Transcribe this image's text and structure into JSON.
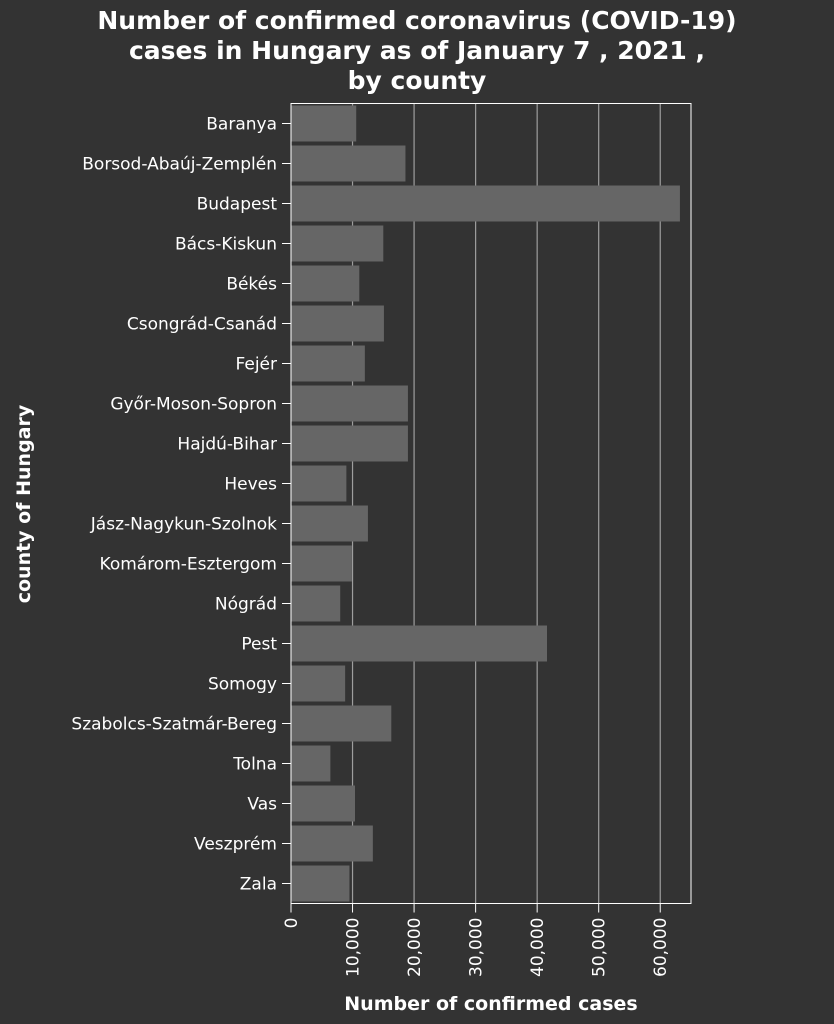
{
  "chart_data": {
    "type": "bar",
    "orientation": "horizontal",
    "title_lines": [
      "Number of confirmed coronavirus (COVID-19)",
      "cases in Hungary as of January 7 , 2021 ,",
      "by county"
    ],
    "xlabel": "Number of confirmed cases",
    "ylabel": "county of Hungary",
    "xlim": [
      0,
      65000
    ],
    "x_ticks": [
      0,
      10000,
      20000,
      30000,
      40000,
      50000,
      60000
    ],
    "x_tick_labels": [
      "0",
      "10,000",
      "20,000",
      "30,000",
      "40,000",
      "50,000",
      "60,000"
    ],
    "grid": "vertical",
    "categories": [
      "Baranya",
      "Borsod-Abaúj-Zemplén",
      "Budapest",
      "Bács-Kiskun",
      "Békés",
      "Csongrád-Csanád",
      "Fejér",
      "Győr-Moson-Sopron",
      "Hajdú-Bihar",
      "Heves",
      "Jász-Nagykun-Szolnok",
      "Komárom-Esztergom",
      "Nógrád",
      "Pest",
      "Somogy",
      "Szabolcs-Szatmár-Bereg",
      "Tolna",
      "Vas",
      "Veszprém",
      "Zala"
    ],
    "values": [
      10600,
      18600,
      63200,
      15000,
      11100,
      15100,
      12000,
      19000,
      19000,
      9000,
      12500,
      9900,
      8000,
      41600,
      8800,
      16300,
      6400,
      10400,
      13300,
      9500
    ],
    "colors": {
      "background": "#333333",
      "bar": "#666666",
      "grid": "#9e9e9e",
      "text": "#ffffff"
    }
  }
}
